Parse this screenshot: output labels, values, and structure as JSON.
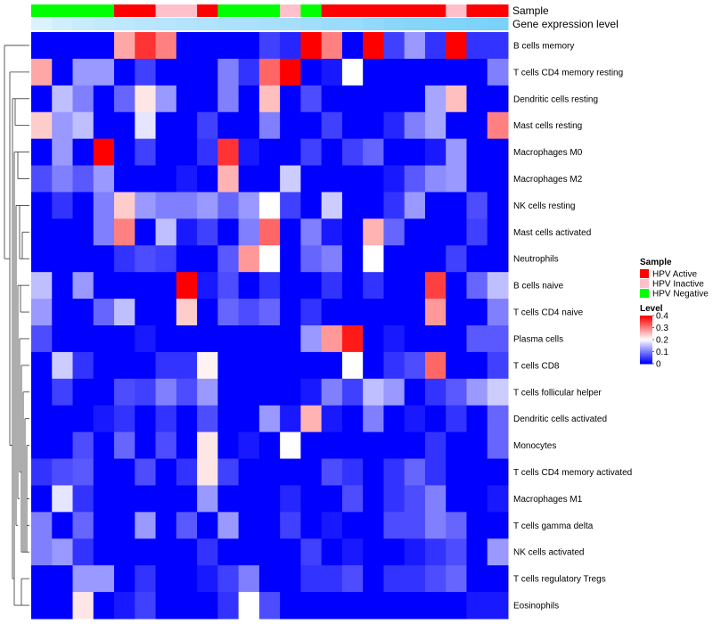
{
  "chart_data": {
    "type": "heatmap",
    "column_annotations": [
      {
        "label": "Sample",
        "values": [
          "HPV Negative",
          "HPV Negative",
          "HPV Negative",
          "HPV Negative",
          "HPV Active",
          "HPV Active",
          "HPV Inactive",
          "HPV Inactive",
          "HPV Active",
          "HPV Negative",
          "HPV Negative",
          "HPV Negative",
          "HPV Inactive",
          "HPV Negative",
          "HPV Active",
          "HPV Active",
          "HPV Active",
          "HPV Active",
          "HPV Active",
          "HPV Active",
          "HPV Inactive",
          "HPV Active",
          "HPV Active"
        ]
      },
      {
        "label": "Gene expression level",
        "values": [
          0.05,
          0.12,
          0.18,
          0.22,
          0.25,
          0.28,
          0.3,
          0.32,
          0.34,
          0.36,
          0.38,
          0.4,
          0.42,
          0.45,
          0.48,
          0.5,
          0.55,
          0.6,
          0.62,
          0.64,
          0.66,
          0.68,
          0.7
        ]
      }
    ],
    "rows": [
      "B cells memory",
      "T cells CD4 memory resting",
      "Dendritic cells resting",
      "Mast cells resting",
      "Macrophages M0",
      "Macrophages M2",
      "NK cells resting",
      "Mast cells activated",
      "Neutrophils",
      "B cells naive",
      "T cells CD4 naive",
      "Plasma cells",
      "T cells CD8",
      "T cells follicular helper",
      "Dendritic cells activated",
      "Monocytes",
      "T cells CD4 memory activated",
      "Macrophages M1",
      "T cells gamma delta",
      "NK cells activated",
      "T cells regulatory  Tregs",
      "Eosinophils"
    ],
    "values": [
      [
        0,
        0,
        0,
        0,
        0.27,
        0.36,
        0.3,
        0,
        0,
        0,
        0,
        0.05,
        0.03,
        0.4,
        0.3,
        0,
        0.4,
        0.05,
        0.12,
        0.04,
        0.4,
        0.04,
        0.04
      ],
      [
        0.27,
        0,
        0.12,
        0.12,
        0,
        0.05,
        0,
        0,
        0,
        0.1,
        0.04,
        0.32,
        0.4,
        0,
        0.02,
        0.2,
        0,
        0,
        0,
        0,
        0,
        0,
        0.1
      ],
      [
        0,
        0.15,
        0.1,
        0,
        0.08,
        0.22,
        0.12,
        0,
        0,
        0.1,
        0,
        0.25,
        0,
        0.06,
        0,
        0,
        0,
        0,
        0,
        0.13,
        0.25,
        0,
        0
      ],
      [
        0.24,
        0.12,
        0.15,
        0,
        0,
        0.18,
        0,
        0,
        0.05,
        0,
        0,
        0.1,
        0,
        0,
        0.05,
        0,
        0,
        0.03,
        0.1,
        0.13,
        0,
        0,
        0.3
      ],
      [
        0,
        0.12,
        0,
        0.4,
        0,
        0.05,
        0,
        0,
        0.04,
        0.36,
        0.02,
        0,
        0,
        0.05,
        0,
        0.05,
        0.08,
        0,
        0,
        0.02,
        0.12,
        0,
        0
      ],
      [
        0.06,
        0.1,
        0.07,
        0.12,
        0,
        0,
        0,
        0.02,
        0,
        0.26,
        0,
        0,
        0.16,
        0,
        0,
        0,
        0,
        0.02,
        0.07,
        0.11,
        0.12,
        0,
        0
      ],
      [
        0,
        0.04,
        0,
        0.1,
        0.24,
        0.12,
        0.1,
        0.1,
        0.12,
        0.08,
        0.12,
        0.2,
        0.05,
        0,
        0.16,
        0,
        0,
        0.04,
        0.12,
        0,
        0,
        0.06,
        0
      ],
      [
        0,
        0,
        0,
        0.1,
        0.3,
        0,
        0.15,
        0.02,
        0.05,
        0,
        0.1,
        0.32,
        0,
        0.1,
        0.02,
        0,
        0.26,
        0.08,
        0,
        0,
        0,
        0.05,
        0
      ],
      [
        0,
        0,
        0,
        0,
        0.04,
        0.06,
        0.05,
        0,
        0,
        0.07,
        0.28,
        0.2,
        0,
        0.08,
        0.1,
        0,
        0.2,
        0,
        0,
        0,
        0.05,
        0,
        0
      ],
      [
        0.15,
        0,
        0.12,
        0,
        0,
        0,
        0,
        0.4,
        0.02,
        0.06,
        0,
        0.04,
        0,
        0,
        0.04,
        0,
        0.04,
        0,
        0,
        0.35,
        0,
        0.08,
        0.15
      ],
      [
        0.12,
        0,
        0,
        0.08,
        0.15,
        0,
        0,
        0.24,
        0,
        0.08,
        0.06,
        0.08,
        0,
        0.04,
        0,
        0,
        0,
        0,
        0,
        0.28,
        0,
        0,
        0.1
      ],
      [
        0.06,
        0,
        0,
        0,
        0,
        0.02,
        0,
        0,
        0,
        0,
        0,
        0,
        0,
        0.12,
        0.28,
        0.38,
        0,
        0.02,
        0,
        0,
        0,
        0.07,
        0.07
      ],
      [
        0,
        0.16,
        0.04,
        0,
        0,
        0,
        0.04,
        0.04,
        0.21,
        0,
        0,
        0,
        0,
        0,
        0,
        0.2,
        0,
        0.04,
        0.06,
        0.32,
        0,
        0,
        0.05
      ],
      [
        0,
        0.05,
        0,
        0,
        0.06,
        0.05,
        0.1,
        0.06,
        0.12,
        0,
        0,
        0,
        0,
        0.02,
        0.1,
        0.05,
        0.15,
        0.12,
        0,
        0.04,
        0.07,
        0.12,
        0.16
      ],
      [
        0,
        0,
        0,
        0.02,
        0.04,
        0,
        0.04,
        0,
        0.06,
        0,
        0,
        0.12,
        0.02,
        0.26,
        0.02,
        0,
        0.1,
        0,
        0.02,
        0,
        0.04,
        0,
        0.08
      ],
      [
        0,
        0,
        0.06,
        0,
        0.08,
        0,
        0.06,
        0,
        0.22,
        0,
        0.02,
        0,
        0.2,
        0,
        0,
        0,
        0,
        0,
        0,
        0.04,
        0,
        0,
        0.08
      ],
      [
        0.04,
        0.06,
        0.07,
        0,
        0,
        0.06,
        0,
        0.04,
        0.22,
        0.05,
        0,
        0,
        0,
        0,
        0.06,
        0.04,
        0,
        0.04,
        0.08,
        0.04,
        0,
        0,
        0
      ],
      [
        0,
        0.18,
        0.04,
        0,
        0,
        0,
        0,
        0,
        0.12,
        0,
        0,
        0,
        0.03,
        0,
        0,
        0.06,
        0,
        0.04,
        0.06,
        0.1,
        0,
        0,
        0.02
      ],
      [
        0.1,
        0,
        0.08,
        0,
        0,
        0.12,
        0,
        0.07,
        0,
        0.12,
        0,
        0,
        0.05,
        0,
        0.02,
        0,
        0,
        0.06,
        0.06,
        0.1,
        0.08,
        0,
        0
      ],
      [
        0.1,
        0.12,
        0.04,
        0,
        0,
        0,
        0,
        0,
        0.04,
        0,
        0,
        0,
        0,
        0.05,
        0,
        0.02,
        0,
        0,
        0.02,
        0.04,
        0.06,
        0,
        0.12
      ],
      [
        0,
        0,
        0.12,
        0.12,
        0,
        0.04,
        0,
        0,
        0.02,
        0.05,
        0.1,
        0,
        0,
        0.04,
        0.04,
        0.06,
        0,
        0.04,
        0.04,
        0.06,
        0.08,
        0,
        0
      ],
      [
        0,
        0,
        0.22,
        0,
        0.02,
        0.05,
        0,
        0,
        0,
        0.04,
        0.2,
        0.06,
        0,
        0,
        0,
        0,
        0,
        0,
        0,
        0,
        0,
        0.02,
        0.02
      ]
    ],
    "legend": {
      "sample_title": "Sample",
      "sample_entries": [
        {
          "label": "HPV Active",
          "color": "#ff0000"
        },
        {
          "label": "HPV Inactive",
          "color": "#ffc0cb"
        },
        {
          "label": "HPV Negative",
          "color": "#00ff00"
        }
      ],
      "level_title": "Level",
      "level_ticks": [
        "0.4",
        "0.3",
        "0.2",
        "0.1",
        "0"
      ],
      "level_range": [
        0,
        0.4
      ]
    },
    "colors": {
      "low": "#0000ff",
      "mid": "#ffffff",
      "high": "#ff0000",
      "expression_low": "#e3f4ff",
      "expression_high": "#4fc3f7"
    }
  }
}
